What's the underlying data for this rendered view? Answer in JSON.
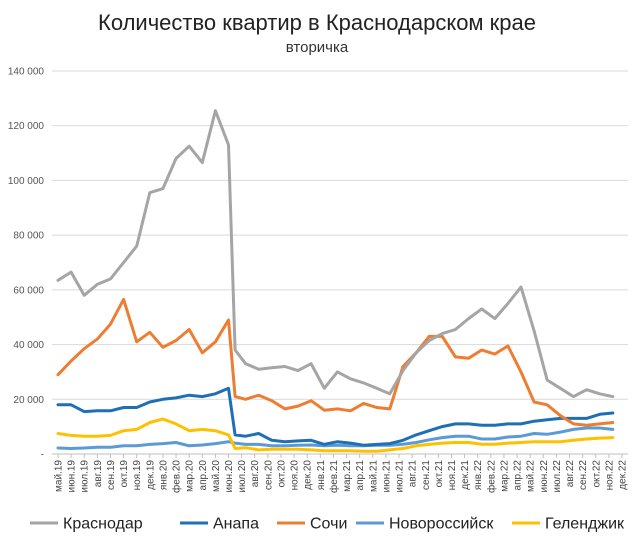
{
  "chart_data": {
    "type": "line",
    "title": "Количество квартир в Краснодарском крае",
    "subtitle": "вторичка",
    "ylim": [
      0,
      140000
    ],
    "yticks": [
      0,
      20000,
      40000,
      60000,
      80000,
      100000,
      120000,
      140000
    ],
    "ytick_labels": [
      "-",
      "20 000",
      "40 000",
      "60 000",
      "80 000",
      "100 000",
      "120 000",
      "140 000"
    ],
    "grid": "horizontal",
    "legend_position": "bottom",
    "categories": [
      "май.19",
      "июн.19",
      "июл.19",
      "авг.19",
      "сен.19",
      "окт.19",
      "ноя.19",
      "дек.19",
      "янв.20",
      "фев.20",
      "мар.20",
      "апр.20",
      "май.20",
      "июн.20",
      "июл.20",
      "авг.20",
      "сен.20",
      "окт.20",
      "ноя.20",
      "дек.20",
      "янв.21",
      "фев.21",
      "мар.21",
      "апр.21",
      "май.21",
      "июн.21",
      "июл.21",
      "авг.21",
      "сен.21",
      "окт.21",
      "ноя.21",
      "дек.21",
      "янв.22",
      "фев.22",
      "мар.22",
      "апр.22",
      "май.22",
      "июн.22",
      "июл.22",
      "авг.22",
      "сен.22",
      "окт.22",
      "ноя.22",
      "дек.22"
    ],
    "x_values": [
      0,
      1,
      2,
      3,
      4,
      5,
      6,
      7,
      8,
      9,
      10,
      11,
      12,
      13,
      14,
      15,
      16,
      17,
      18,
      19,
      20,
      21,
      22,
      23,
      24,
      25,
      26,
      27,
      28,
      29,
      30,
      31,
      32,
      33,
      34,
      35,
      36,
      37,
      38,
      39,
      40,
      41,
      42,
      43
    ],
    "x_tick_labels": [
      "май.19",
      "июн.19",
      "июл.19",
      "авг.19",
      "сен.19",
      "окт.19",
      "ноя.19",
      "дек.19",
      "янв.20",
      "фев.20",
      "мар.20",
      "апр.20",
      "май.20",
      "июн.20",
      "июл.20",
      "авг.20",
      "сен.20",
      "окт.20",
      "ноя.20",
      "дек.20",
      "янв.21",
      "фев.21",
      "мар.21",
      "апр.21",
      "май.21",
      "июн.21",
      "июл.21",
      "авг.21",
      "сен.21",
      "окт.21",
      "ноя.21",
      "дек.21",
      "янв.22",
      "фев.22",
      "мар.22",
      "апр.22",
      "май.22",
      "июн.22",
      "июл.22",
      "авг.22",
      "сен.22",
      "окт.22",
      "ноя.22",
      "дек.22"
    ],
    "series": [
      {
        "name": "Краснодар",
        "color": "#a5a5a5",
        "points": [
          [
            0,
            63500
          ],
          [
            1,
            66500
          ],
          [
            2,
            58000
          ],
          [
            3,
            62000
          ],
          [
            4,
            64000
          ],
          [
            5,
            70000
          ],
          [
            6,
            76000
          ],
          [
            7,
            95500
          ],
          [
            8,
            97000
          ],
          [
            9,
            108000
          ],
          [
            10,
            112500
          ],
          [
            11,
            106500
          ],
          [
            12,
            125500
          ],
          [
            13,
            113000
          ],
          [
            13.5,
            38000
          ],
          [
            14.3,
            33000
          ],
          [
            15.3,
            31000
          ],
          [
            16.3,
            31500
          ],
          [
            17.3,
            32000
          ],
          [
            18.3,
            30500
          ],
          [
            19.3,
            33000
          ],
          [
            20.3,
            24000
          ],
          [
            21.3,
            30000
          ],
          [
            22.3,
            27500
          ],
          [
            23.3,
            26000
          ],
          [
            24.3,
            24000
          ],
          [
            25.3,
            22000
          ],
          [
            26.3,
            30500
          ],
          [
            27.3,
            37000
          ],
          [
            28.3,
            41500
          ],
          [
            29.3,
            44000
          ],
          [
            30.3,
            45500
          ],
          [
            31.3,
            49500
          ],
          [
            32.3,
            53000
          ],
          [
            33.3,
            49500
          ],
          [
            34.3,
            55000
          ],
          [
            35.3,
            61000
          ],
          [
            36.3,
            45000
          ],
          [
            37.3,
            27000
          ],
          [
            38.3,
            24000
          ],
          [
            39.3,
            21000
          ],
          [
            40.3,
            23500
          ],
          [
            41.3,
            22000
          ],
          [
            42.3,
            21000
          ]
        ]
      },
      {
        "name": "Анапа",
        "color": "#1f6fb5",
        "points": [
          [
            0,
            18000
          ],
          [
            1,
            18000
          ],
          [
            2,
            15500
          ],
          [
            3,
            15800
          ],
          [
            4,
            15800
          ],
          [
            5,
            17000
          ],
          [
            6,
            17000
          ],
          [
            7,
            19000
          ],
          [
            8,
            20000
          ],
          [
            9,
            20500
          ],
          [
            10,
            21500
          ],
          [
            11,
            21000
          ],
          [
            12,
            22000
          ],
          [
            13,
            24000
          ],
          [
            13.5,
            7000
          ],
          [
            14.3,
            6500
          ],
          [
            15.3,
            7500
          ],
          [
            16.3,
            5000
          ],
          [
            17.3,
            4500
          ],
          [
            18.3,
            4800
          ],
          [
            19.3,
            5000
          ],
          [
            20.3,
            3500
          ],
          [
            21.3,
            4500
          ],
          [
            22.3,
            4000
          ],
          [
            23.3,
            3200
          ],
          [
            24.3,
            3500
          ],
          [
            25.3,
            3800
          ],
          [
            26.3,
            5000
          ],
          [
            27.3,
            7000
          ],
          [
            28.3,
            8500
          ],
          [
            29.3,
            10000
          ],
          [
            30.3,
            11000
          ],
          [
            31.3,
            11000
          ],
          [
            32.3,
            10500
          ],
          [
            33.3,
            10500
          ],
          [
            34.3,
            11000
          ],
          [
            35.3,
            11000
          ],
          [
            36.3,
            12000
          ],
          [
            37.3,
            12500
          ],
          [
            38.3,
            13000
          ],
          [
            39.3,
            13000
          ],
          [
            40.3,
            13000
          ],
          [
            41.3,
            14500
          ],
          [
            42.3,
            15000
          ]
        ]
      },
      {
        "name": "Сочи",
        "color": "#ed7d31",
        "points": [
          [
            0,
            29000
          ],
          [
            1,
            34000
          ],
          [
            2,
            38500
          ],
          [
            3,
            42000
          ],
          [
            4,
            47500
          ],
          [
            5,
            56500
          ],
          [
            6,
            41000
          ],
          [
            7,
            44500
          ],
          [
            8,
            39000
          ],
          [
            9,
            41500
          ],
          [
            10,
            45500
          ],
          [
            11,
            37000
          ],
          [
            12,
            41000
          ],
          [
            13,
            49000
          ],
          [
            13.5,
            21000
          ],
          [
            14.3,
            20000
          ],
          [
            15.3,
            21500
          ],
          [
            16.3,
            19500
          ],
          [
            17.3,
            16500
          ],
          [
            18.3,
            17500
          ],
          [
            19.3,
            19500
          ],
          [
            20.3,
            16000
          ],
          [
            21.3,
            16500
          ],
          [
            22.3,
            15800
          ],
          [
            23.3,
            18500
          ],
          [
            24.3,
            17000
          ],
          [
            25.3,
            16500
          ],
          [
            26.3,
            32000
          ],
          [
            27.3,
            37000
          ],
          [
            28.3,
            43000
          ],
          [
            29.3,
            43000
          ],
          [
            30.3,
            35500
          ],
          [
            31.3,
            35000
          ],
          [
            32.3,
            38000
          ],
          [
            33.3,
            36500
          ],
          [
            34.3,
            39500
          ],
          [
            35.3,
            30000
          ],
          [
            36.3,
            19000
          ],
          [
            37.3,
            18000
          ],
          [
            38.3,
            14000
          ],
          [
            39.3,
            11000
          ],
          [
            40.3,
            10500
          ],
          [
            41.3,
            11000
          ],
          [
            42.3,
            11500
          ]
        ]
      },
      {
        "name": "Новороссийск",
        "color": "#5b9bd5",
        "points": [
          [
            0,
            2200
          ],
          [
            1,
            2000
          ],
          [
            2,
            2200
          ],
          [
            3,
            2500
          ],
          [
            4,
            2500
          ],
          [
            5,
            3000
          ],
          [
            6,
            3000
          ],
          [
            7,
            3500
          ],
          [
            8,
            3800
          ],
          [
            9,
            4200
          ],
          [
            10,
            3000
          ],
          [
            11,
            3300
          ],
          [
            12,
            3800
          ],
          [
            13,
            4500
          ],
          [
            13.5,
            4000
          ],
          [
            14.3,
            3500
          ],
          [
            15.3,
            3500
          ],
          [
            16.3,
            3000
          ],
          [
            17.3,
            3000
          ],
          [
            18.3,
            3200
          ],
          [
            19.3,
            3300
          ],
          [
            20.3,
            3000
          ],
          [
            21.3,
            3200
          ],
          [
            22.3,
            3000
          ],
          [
            23.3,
            3000
          ],
          [
            24.3,
            3200
          ],
          [
            25.3,
            3200
          ],
          [
            26.3,
            3600
          ],
          [
            27.3,
            4200
          ],
          [
            28.3,
            5200
          ],
          [
            29.3,
            6000
          ],
          [
            30.3,
            6500
          ],
          [
            31.3,
            6500
          ],
          [
            32.3,
            5500
          ],
          [
            33.3,
            5500
          ],
          [
            34.3,
            6200
          ],
          [
            35.3,
            6500
          ],
          [
            36.3,
            7500
          ],
          [
            37.3,
            7200
          ],
          [
            38.3,
            8000
          ],
          [
            39.3,
            9000
          ],
          [
            40.3,
            9500
          ],
          [
            41.3,
            9500
          ],
          [
            42.3,
            9000
          ]
        ]
      },
      {
        "name": "Геленджик",
        "color": "#ffc000",
        "points": [
          [
            0,
            7500
          ],
          [
            1,
            6800
          ],
          [
            2,
            6500
          ],
          [
            3,
            6500
          ],
          [
            4,
            6800
          ],
          [
            5,
            8500
          ],
          [
            6,
            9000
          ],
          [
            7,
            11500
          ],
          [
            8,
            12800
          ],
          [
            9,
            11000
          ],
          [
            10,
            8500
          ],
          [
            11,
            9000
          ],
          [
            12,
            8500
          ],
          [
            13,
            7000
          ],
          [
            13.5,
            2000
          ],
          [
            14.3,
            2300
          ],
          [
            15.3,
            1500
          ],
          [
            16.3,
            1700
          ],
          [
            17.3,
            1700
          ],
          [
            18.3,
            1700
          ],
          [
            19.3,
            1500
          ],
          [
            20.3,
            1200
          ],
          [
            21.3,
            1200
          ],
          [
            22.3,
            1200
          ],
          [
            23.3,
            1000
          ],
          [
            24.3,
            1000
          ],
          [
            25.3,
            1500
          ],
          [
            26.3,
            2000
          ],
          [
            27.3,
            3000
          ],
          [
            28.3,
            3500
          ],
          [
            29.3,
            4000
          ],
          [
            30.3,
            4200
          ],
          [
            31.3,
            4200
          ],
          [
            32.3,
            3600
          ],
          [
            33.3,
            3600
          ],
          [
            34.3,
            4000
          ],
          [
            35.3,
            4200
          ],
          [
            36.3,
            4500
          ],
          [
            37.3,
            4500
          ],
          [
            38.3,
            4500
          ],
          [
            39.3,
            5000
          ],
          [
            40.3,
            5500
          ],
          [
            41.3,
            5800
          ],
          [
            42.3,
            6000
          ]
        ]
      }
    ]
  }
}
